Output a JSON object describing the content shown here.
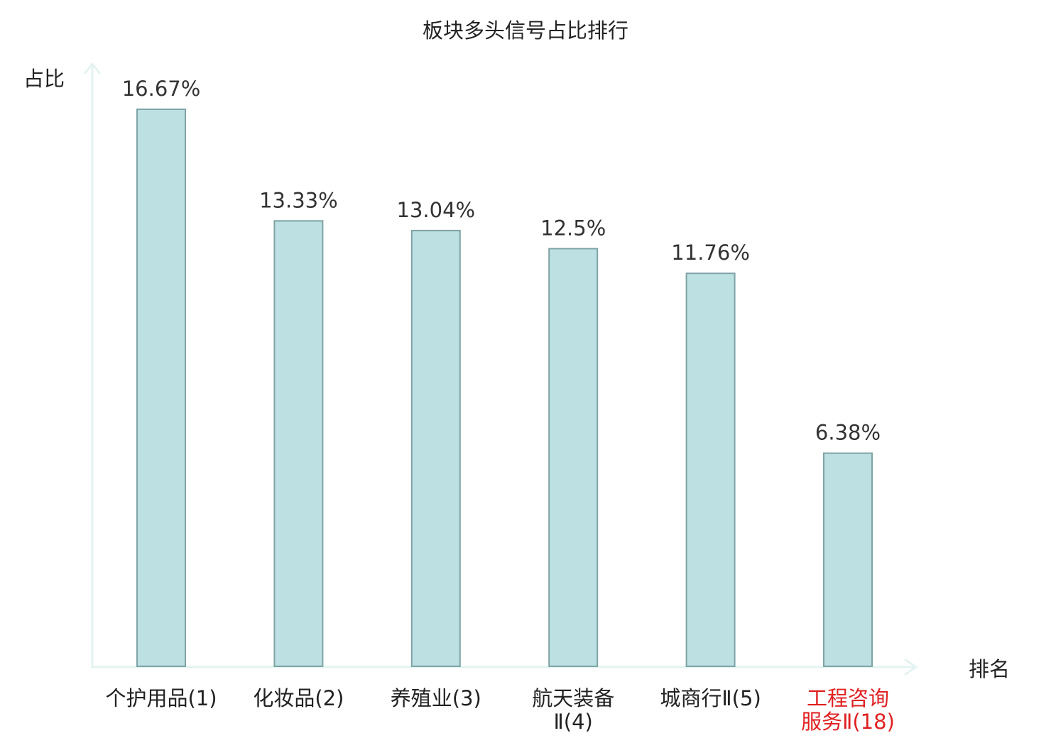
{
  "chart_data": {
    "type": "bar",
    "title": "板块多头信号占比排行",
    "ylabel": "占比",
    "xlabel": "排名",
    "categories": [
      {
        "lines": [
          "个护用品(1)"
        ],
        "highlight": false
      },
      {
        "lines": [
          "化妆品(2)"
        ],
        "highlight": false
      },
      {
        "lines": [
          "养殖业(3)"
        ],
        "highlight": false
      },
      {
        "lines": [
          "航天装备",
          "Ⅱ(4)"
        ],
        "highlight": false
      },
      {
        "lines": [
          "城商行Ⅱ(5)"
        ],
        "highlight": false
      },
      {
        "lines": [
          "工程咨询",
          "服务Ⅱ(18)"
        ],
        "highlight": true
      }
    ],
    "values": [
      16.67,
      13.33,
      13.04,
      12.5,
      11.76,
      6.38
    ],
    "value_labels": [
      "16.67%",
      "13.33%",
      "13.04%",
      "12.5%",
      "11.76%",
      "6.38%"
    ],
    "ylim": [
      0,
      16.67
    ],
    "grid": false,
    "colors": {
      "bar_fill": "#bde0e3",
      "bar_stroke": "#7fa3a6",
      "axis": "#e3f3f1",
      "label_text": "#222222",
      "value_text": "#333333",
      "highlight_text": "#e02020"
    }
  }
}
